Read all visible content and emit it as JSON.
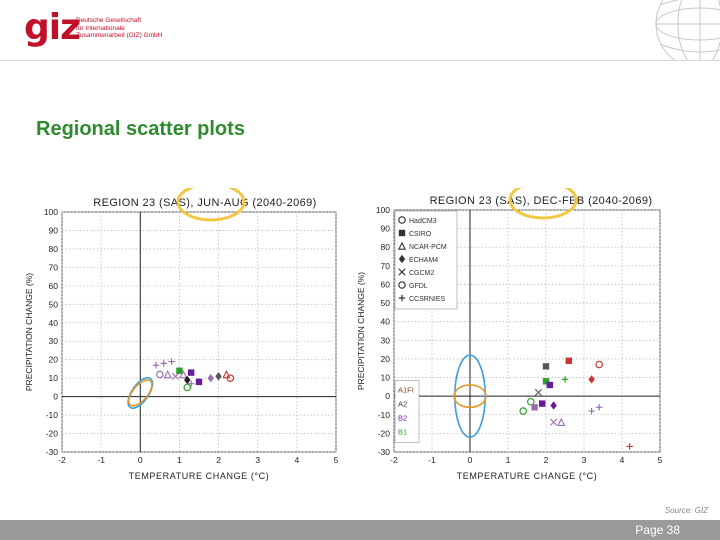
{
  "header": {
    "logo_mark": "giz",
    "logo_line1": "Deutsche Gesellschaft",
    "logo_line2": "für Internationale",
    "logo_line3": "Zusammenarbeit (GIZ) GmbH"
  },
  "slide_title": "Regional scatter plots",
  "source": "Source: GIZ",
  "page_label": "Page 38",
  "colors": {
    "title_green": "#2e8b2e",
    "logo_red": "#c0102a",
    "highlight_circle": "#f2c744",
    "ellipse_blue": "#3aa0d8",
    "ellipse_orange": "#e8962a"
  },
  "chart_data": [
    {
      "type": "scatter",
      "title": "REGION 23 (SAS), JUN-AUG (2040-2069)",
      "xlabel": "TEMPERATURE CHANGE (°C)",
      "ylabel": "PRECIPITATION CHANGE (%)",
      "xlim": [
        -2,
        5
      ],
      "ylim": [
        -30,
        100
      ],
      "xticks": [
        "-2",
        "-1",
        "0",
        "1",
        "2",
        "3",
        "4",
        "5"
      ],
      "yticks": [
        "-30",
        "-20",
        "-10",
        "0",
        "10",
        "20",
        "30",
        "40",
        "50",
        "60",
        "70",
        "80",
        "90",
        "100"
      ],
      "grid": true,
      "points": [
        {
          "x": 0.4,
          "y": 17,
          "marker": "plus",
          "color": "#9a6fb0"
        },
        {
          "x": 0.6,
          "y": 18,
          "marker": "plus",
          "color": "#9a6fb0"
        },
        {
          "x": 0.8,
          "y": 19,
          "marker": "plus",
          "color": "#9a6fb0"
        },
        {
          "x": 0.7,
          "y": 12,
          "marker": "triangle",
          "color": "#9a6fb0"
        },
        {
          "x": 0.9,
          "y": 11,
          "marker": "x",
          "color": "#9a6fb0"
        },
        {
          "x": 1.0,
          "y": 14,
          "marker": "square",
          "color": "#2aa02a"
        },
        {
          "x": 1.1,
          "y": 12,
          "marker": "triangle",
          "color": "#9a6fb0"
        },
        {
          "x": 1.2,
          "y": 9,
          "marker": "diamond",
          "color": "#222222"
        },
        {
          "x": 1.3,
          "y": 13,
          "marker": "square",
          "color": "#6a1b9a"
        },
        {
          "x": 1.3,
          "y": 7,
          "marker": "plus",
          "color": "#9a6fb0"
        },
        {
          "x": 1.5,
          "y": 8,
          "marker": "square",
          "color": "#6a1b9a"
        },
        {
          "x": 1.8,
          "y": 10,
          "marker": "diamond",
          "color": "#9a6fb0"
        },
        {
          "x": 2.0,
          "y": 11,
          "marker": "diamond",
          "color": "#555555"
        },
        {
          "x": 2.2,
          "y": 12,
          "marker": "triangle",
          "color": "#cc3333"
        },
        {
          "x": 2.3,
          "y": 10,
          "marker": "circle",
          "color": "#cc3333"
        },
        {
          "x": 1.2,
          "y": 5,
          "marker": "circle",
          "color": "#2aa02a"
        },
        {
          "x": 0.5,
          "y": 12,
          "marker": "circle",
          "color": "#9a6fb0"
        }
      ],
      "ellipses": [
        {
          "cx": 0.0,
          "cy": 2,
          "rx": 0.45,
          "ry": 4.5,
          "color": "#3aa0d8",
          "rotate": -55
        },
        {
          "cx": 0.0,
          "cy": 2,
          "rx": 0.4,
          "ry": 4,
          "color": "#e8962a",
          "rotate": -50
        }
      ]
    },
    {
      "type": "scatter",
      "title": "REGION 23 (SAS), DEC-FEB (2040-2069)",
      "xlabel": "TEMPERATURE CHANGE (°C)",
      "ylabel": "PRECIPITATION CHANGE (%)",
      "xlim": [
        -2,
        5
      ],
      "ylim": [
        -30,
        100
      ],
      "xticks": [
        "-2",
        "-1",
        "0",
        "1",
        "2",
        "3",
        "4",
        "5"
      ],
      "yticks": [
        "-30",
        "-20",
        "-10",
        "0",
        "10",
        "20",
        "30",
        "40",
        "50",
        "60",
        "70",
        "80",
        "90",
        "100"
      ],
      "grid": true,
      "legend_models": [
        "HadCM3",
        "CSIRO",
        "NCAR-PCM",
        "ECHAM4",
        "CGCM2",
        "GFDL",
        "CCSRNIES"
      ],
      "legend_scenarios": [
        {
          "label": "A1FI",
          "color": "#8b4513"
        },
        {
          "label": "A2",
          "color": "#333333"
        },
        {
          "label": "B2",
          "color": "#6a1b9a"
        },
        {
          "label": "B1",
          "color": "#2aa02a"
        }
      ],
      "legend_position": "top-left",
      "points": [
        {
          "x": 2.0,
          "y": 16,
          "marker": "square",
          "color": "#555555"
        },
        {
          "x": 2.6,
          "y": 19,
          "marker": "square",
          "color": "#cc3333"
        },
        {
          "x": 3.4,
          "y": 17,
          "marker": "circle",
          "color": "#cc3333"
        },
        {
          "x": 3.2,
          "y": 9,
          "marker": "diamond",
          "color": "#cc3333"
        },
        {
          "x": 2.5,
          "y": 9,
          "marker": "plus",
          "color": "#2aa02a"
        },
        {
          "x": 2.0,
          "y": 8,
          "marker": "square",
          "color": "#2aa02a"
        },
        {
          "x": 2.1,
          "y": 6,
          "marker": "square",
          "color": "#6a1b9a"
        },
        {
          "x": 1.8,
          "y": 2,
          "marker": "x",
          "color": "#555555"
        },
        {
          "x": 1.6,
          "y": -3,
          "marker": "circle",
          "color": "#2aa02a"
        },
        {
          "x": 1.4,
          "y": -8,
          "marker": "circle",
          "color": "#2aa02a"
        },
        {
          "x": 1.7,
          "y": -6,
          "marker": "square",
          "color": "#9a6fb0"
        },
        {
          "x": 1.9,
          "y": -4,
          "marker": "square",
          "color": "#6a1b9a"
        },
        {
          "x": 2.2,
          "y": -5,
          "marker": "diamond",
          "color": "#6a1b9a"
        },
        {
          "x": 2.2,
          "y": -14,
          "marker": "x",
          "color": "#9a6fb0"
        },
        {
          "x": 2.4,
          "y": -14,
          "marker": "triangle",
          "color": "#9a6fb0"
        },
        {
          "x": 3.2,
          "y": -8,
          "marker": "plus",
          "color": "#9a6fb0"
        },
        {
          "x": 3.4,
          "y": -6,
          "marker": "plus",
          "color": "#9a6fb0"
        },
        {
          "x": 4.2,
          "y": -27,
          "marker": "plus",
          "color": "#cc3333"
        }
      ],
      "ellipses": [
        {
          "cx": 0.0,
          "cy": 0,
          "rx": 0.4,
          "ry": 22,
          "color": "#3aa0d8",
          "rotate": 0
        },
        {
          "cx": 0.0,
          "cy": 0,
          "rx": 0.42,
          "ry": 6,
          "color": "#e8962a",
          "rotate": 0
        }
      ]
    }
  ]
}
